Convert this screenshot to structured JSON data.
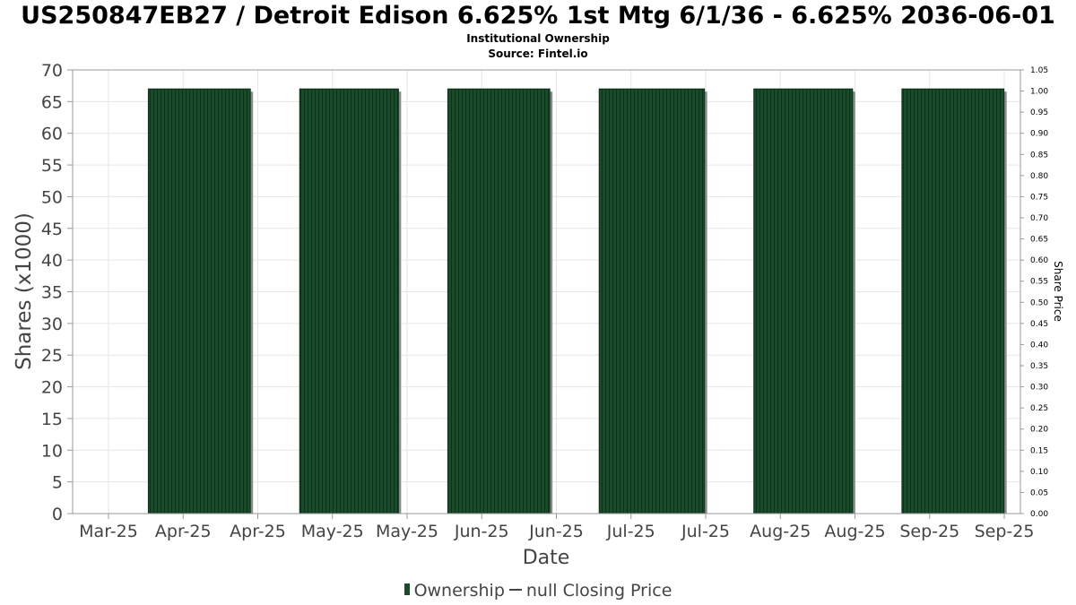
{
  "chart_data": {
    "type": "bar",
    "title": "US250847EB27 / Detroit Edison 6.625% 1st Mtg 6/1/36 - 6.625% 2036-06-01",
    "subtitle": "Institutional Ownership",
    "source": "Source: Fintel.io",
    "xlabel": "Date",
    "ylabel": "Shares (x1000)",
    "y2label": "Share Price",
    "ylim": [
      0,
      70
    ],
    "y2lim": [
      0,
      1.05
    ],
    "yticks": [
      "0",
      "5",
      "10",
      "15",
      "20",
      "25",
      "30",
      "35",
      "40",
      "45",
      "50",
      "55",
      "60",
      "65",
      "70"
    ],
    "y2ticks": [
      "0.00",
      "0.05",
      "0.10",
      "0.15",
      "0.20",
      "0.25",
      "0.30",
      "0.35",
      "0.40",
      "0.45",
      "0.50",
      "0.55",
      "0.60",
      "0.65",
      "0.70",
      "0.75",
      "0.80",
      "0.85",
      "0.90",
      "0.95",
      "1.00",
      "1.05"
    ],
    "xticks": [
      "Mar-25",
      "Apr-25",
      "Apr-25",
      "May-25",
      "May-25",
      "Jun-25",
      "Jun-25",
      "Jul-25",
      "Jul-25",
      "Aug-25",
      "Aug-25",
      "Sep-25",
      "Sep-25"
    ],
    "series": [
      {
        "name": "Ownership",
        "color": "#1a4a2a",
        "bars": [
          {
            "start": "2025-03-15",
            "end": "2025-04-15",
            "value": 67
          },
          {
            "start": "2025-04-30",
            "end": "2025-05-30",
            "value": 67
          },
          {
            "start": "2025-06-14",
            "end": "2025-07-15",
            "value": 67
          },
          {
            "start": "2025-07-30",
            "end": "2025-08-31",
            "value": 67
          },
          {
            "start": "2025-09-15",
            "end": "2025-10-15",
            "value": 67
          },
          {
            "start": "2025-10-30",
            "end": "2025-11-30",
            "value": 67
          }
        ]
      },
      {
        "name": "null Closing Price",
        "color": "#444444",
        "values": []
      }
    ],
    "grid": true,
    "legend": "bottom"
  },
  "legend": {
    "ownership_label": "Ownership",
    "price_label": "null Closing Price"
  }
}
